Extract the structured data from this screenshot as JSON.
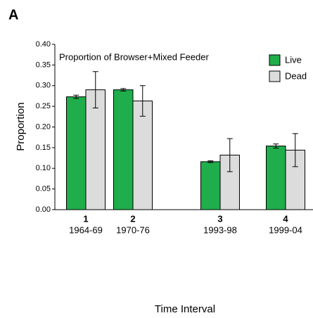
{
  "panel": "A",
  "chart_data": {
    "type": "bar",
    "title": "Proportion of Browser+Mixed Feeder",
    "x_label": "Time Interval",
    "y_label": "Proportion",
    "categories": [
      "1",
      "2",
      "3",
      "4"
    ],
    "periods": [
      "1964-69",
      "1970-76",
      "1993-98",
      "1999-04"
    ],
    "series": [
      {
        "name": "Live",
        "color": "#1fae4b",
        "values": [
          0.273,
          0.29,
          0.116,
          0.154
        ],
        "errors": [
          0.004,
          0.003,
          0.002,
          0.005
        ]
      },
      {
        "name": "Dead",
        "color": "#dcdcdc",
        "values": [
          0.29,
          0.263,
          0.132,
          0.144
        ],
        "errors": [
          0.044,
          0.037,
          0.04,
          0.04
        ]
      }
    ],
    "ylim": [
      0,
      0.4
    ],
    "yticks": [
      {
        "value": 0,
        "label": "0.00"
      },
      {
        "value": 0.05,
        "label": "0.05"
      },
      {
        "value": 0.1,
        "label": "0.10"
      },
      {
        "value": 0.15,
        "label": "0.15"
      },
      {
        "value": 0.2,
        "label": "0.20"
      },
      {
        "value": 0.25,
        "label": "0.25"
      },
      {
        "value": 0.3,
        "label": "0.30"
      },
      {
        "value": 0.35,
        "label": "0.35"
      },
      {
        "value": 0.4,
        "label": "0.40"
      }
    ],
    "legend": "top-right"
  }
}
